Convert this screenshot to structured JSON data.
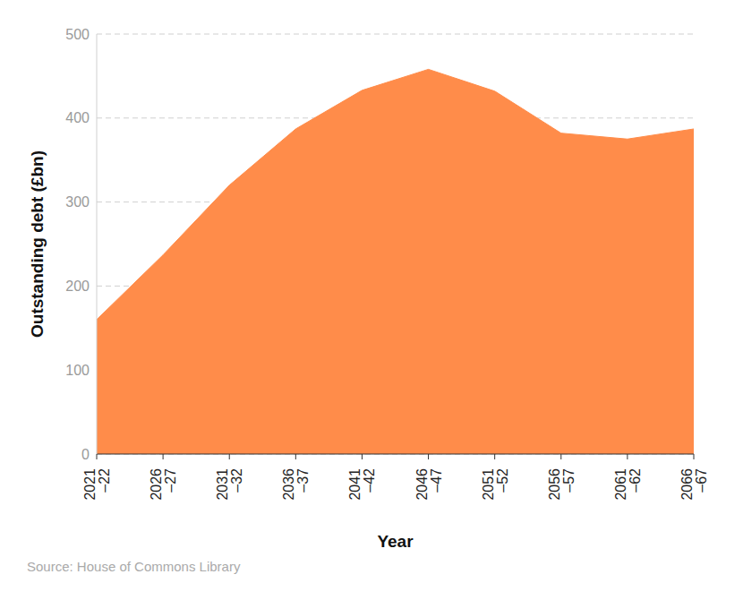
{
  "chart_data": {
    "type": "area",
    "categories": [
      "2021–22",
      "2026–27",
      "2031–32",
      "2036–37",
      "2041–42",
      "2046–47",
      "2051–52",
      "2056–57",
      "2061–62",
      "2066–67"
    ],
    "values": [
      160,
      237,
      320,
      387,
      433,
      458,
      432,
      382,
      375,
      387
    ],
    "color": "#ff8c4a",
    "ylim": [
      0,
      500
    ],
    "yticks": [
      0,
      100,
      200,
      300,
      400,
      500
    ],
    "grid": true,
    "x_label": "Year",
    "y_label": "Outstanding debt (£bn)",
    "source": "Source: House of Commons Library"
  }
}
